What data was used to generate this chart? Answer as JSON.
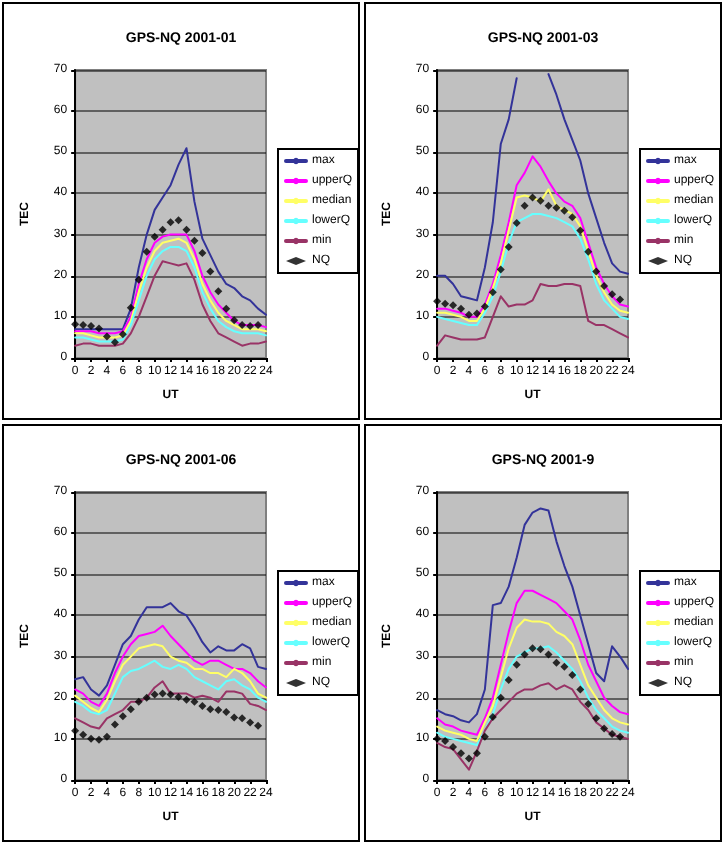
{
  "chart_data": [
    {
      "type": "line",
      "title": "GPS-NQ 2001-01",
      "xlabel": "UT",
      "ylabel": "TEC",
      "x": [
        0,
        1,
        2,
        3,
        4,
        5,
        6,
        7,
        8,
        9,
        10,
        11,
        12,
        13,
        14,
        15,
        16,
        17,
        18,
        19,
        20,
        21,
        22,
        23,
        24
      ],
      "xlim": [
        0,
        24
      ],
      "xticks": [
        0,
        2,
        4,
        6,
        8,
        10,
        12,
        14,
        16,
        18,
        20,
        22,
        24
      ],
      "ylim": [
        0,
        70
      ],
      "yticks": [
        0,
        10,
        20,
        30,
        40,
        50,
        60,
        70
      ],
      "grid": "y",
      "legend": "right",
      "marker": "none",
      "series": [
        {
          "name": "max",
          "color": "#333399",
          "values": [
            7,
            7,
            7,
            7,
            7,
            7,
            7,
            12,
            22,
            30,
            36,
            39,
            42,
            47,
            51,
            38,
            29,
            25,
            21,
            18,
            17,
            15,
            14,
            12,
            10.5
          ]
        },
        {
          "name": "upperQ",
          "color": "#ff00ff",
          "values": [
            6.5,
            6.5,
            6.5,
            6,
            6,
            6,
            6.5,
            10,
            18,
            24,
            28,
            29.5,
            30,
            30,
            30,
            26,
            20,
            16,
            13,
            11,
            9,
            8,
            8,
            8,
            7.5
          ]
        },
        {
          "name": "median",
          "color": "#ffff66",
          "values": [
            6,
            6,
            5.5,
            5,
            5,
            5,
            5.5,
            9,
            16,
            22,
            26,
            28,
            28.5,
            29,
            28,
            24,
            18,
            14,
            11,
            9,
            8,
            7,
            7,
            7,
            6.5
          ]
        },
        {
          "name": "lowerQ",
          "color": "#66ffff",
          "values": [
            5,
            5,
            4.5,
            4,
            4,
            4,
            4.5,
            8,
            14,
            20,
            24,
            26,
            27,
            27,
            26,
            22,
            16,
            12,
            9,
            7.5,
            6.5,
            6,
            6,
            6,
            5.5
          ]
        },
        {
          "name": "min",
          "color": "#993366",
          "values": [
            3,
            3.5,
            3.5,
            3,
            3,
            3,
            3.5,
            6,
            10,
            15,
            20,
            23.5,
            23,
            22.5,
            23,
            19,
            13,
            9,
            6,
            5,
            4,
            3,
            3.5,
            3.5,
            4
          ]
        },
        {
          "name": "NQ",
          "type": "scatter",
          "marker": "diamond",
          "color": "#000000",
          "x": [
            0,
            1,
            2,
            3,
            4,
            5,
            6,
            7,
            8,
            9,
            10,
            11,
            12,
            13,
            14,
            15,
            16,
            17,
            18,
            19,
            20,
            21,
            22,
            23
          ],
          "values": [
            8.2,
            8,
            7.8,
            7.2,
            5.2,
            3.8,
            5.8,
            12.2,
            19,
            25.8,
            29.5,
            31.2,
            33,
            33.5,
            31.2,
            28.5,
            25.5,
            21,
            16.2,
            12,
            9.2,
            8,
            7.8,
            8
          ]
        }
      ]
    },
    {
      "type": "line",
      "title": "GPS-NQ 2001-03",
      "xlabel": "UT",
      "ylabel": "TEC",
      "x": [
        0,
        1,
        2,
        3,
        4,
        5,
        6,
        7,
        8,
        9,
        10,
        11,
        12,
        13,
        14,
        15,
        16,
        17,
        18,
        19,
        20,
        21,
        22,
        23,
        24
      ],
      "xlim": [
        0,
        24
      ],
      "xticks": [
        0,
        2,
        4,
        6,
        8,
        10,
        12,
        14,
        16,
        18,
        20,
        22,
        24
      ],
      "ylim": [
        0,
        70
      ],
      "yticks": [
        0,
        10,
        20,
        30,
        40,
        50,
        60,
        70
      ],
      "grid": "y",
      "legend": "right",
      "marker": "none",
      "series": [
        {
          "name": "max",
          "color": "#333399",
          "values": [
            20,
            20,
            18,
            15,
            14.5,
            14,
            22,
            33,
            52,
            58,
            68,
            null,
            null,
            null,
            69,
            64,
            58,
            53,
            48,
            40,
            34,
            28,
            23,
            21,
            20.5
          ]
        },
        {
          "name": "upperQ",
          "color": "#ff00ff",
          "values": [
            12,
            12,
            11.5,
            11,
            10,
            10,
            13,
            18,
            25,
            33,
            42,
            45,
            49,
            46.5,
            43,
            40,
            38,
            37,
            34,
            28,
            22,
            18,
            15,
            13,
            12.5
          ]
        },
        {
          "name": "median",
          "color": "#ffff66",
          "values": [
            11,
            11,
            10.5,
            10,
            9,
            9,
            12,
            17,
            23,
            31,
            39,
            39.5,
            39,
            38,
            41,
            37,
            36,
            35,
            32,
            26,
            20,
            16,
            13,
            11.5,
            11
          ]
        },
        {
          "name": "lowerQ",
          "color": "#66ffff",
          "values": [
            10,
            9.5,
            9,
            8.5,
            8,
            8,
            11,
            15,
            21,
            28,
            33,
            34,
            35,
            35,
            34.5,
            34,
            33,
            32,
            29,
            24,
            18,
            14,
            12,
            10,
            9.5
          ]
        },
        {
          "name": "min",
          "color": "#993366",
          "values": [
            3,
            5.5,
            5,
            4.5,
            4.5,
            4.5,
            5,
            10,
            15,
            12.5,
            13,
            13,
            14,
            18,
            17.5,
            17.5,
            18,
            18,
            17.5,
            9,
            8,
            8,
            7,
            6,
            5
          ]
        },
        {
          "name": "NQ",
          "type": "scatter",
          "marker": "diamond",
          "color": "#000000",
          "x": [
            0,
            1,
            2,
            3,
            4,
            5,
            6,
            7,
            8,
            9,
            10,
            11,
            12,
            13,
            14,
            15,
            16,
            17,
            18,
            19,
            20,
            21,
            22,
            23
          ],
          "values": [
            13.8,
            13.2,
            12.8,
            12,
            10.5,
            10.8,
            12.5,
            16,
            21.5,
            27,
            32.8,
            37,
            39,
            38.2,
            37,
            36.5,
            35.8,
            34.2,
            31,
            25.8,
            21,
            17.5,
            15.5,
            14.2
          ]
        }
      ]
    },
    {
      "type": "line",
      "title": "GPS-NQ 2001-06",
      "xlabel": "UT",
      "ylabel": "TEC",
      "x": [
        0,
        1,
        2,
        3,
        4,
        5,
        6,
        7,
        8,
        9,
        10,
        11,
        12,
        13,
        14,
        15,
        16,
        17,
        18,
        19,
        20,
        21,
        22,
        23,
        24
      ],
      "xlim": [
        0,
        24
      ],
      "xticks": [
        0,
        2,
        4,
        6,
        8,
        10,
        12,
        14,
        16,
        18,
        20,
        22,
        24
      ],
      "ylim": [
        0,
        70
      ],
      "yticks": [
        0,
        10,
        20,
        30,
        40,
        50,
        60,
        70
      ],
      "grid": "y",
      "legend": "right",
      "marker": "none",
      "series": [
        {
          "name": "max",
          "color": "#333399",
          "values": [
            24.5,
            25,
            22,
            20.5,
            23,
            28,
            33,
            35,
            39,
            42,
            42,
            42,
            43,
            41,
            40,
            37,
            33.5,
            31,
            32.5,
            31.5,
            31.5,
            33,
            32,
            27.5,
            27
          ]
        },
        {
          "name": "upperQ",
          "color": "#ff00ff",
          "values": [
            22,
            21,
            19,
            18,
            21,
            26,
            30,
            33,
            35,
            35.5,
            36,
            37.5,
            35,
            33,
            31,
            29,
            28,
            29,
            29,
            28,
            27,
            27,
            26,
            24,
            22.5
          ]
        },
        {
          "name": "median",
          "color": "#ffff66",
          "values": [
            20.5,
            19,
            17.5,
            16.5,
            19.5,
            24,
            28,
            30,
            32,
            32.5,
            33,
            32.5,
            30,
            29,
            28.5,
            27,
            27,
            26,
            26,
            25,
            27,
            26,
            24,
            21,
            20
          ]
        },
        {
          "name": "lowerQ",
          "color": "#66ffff",
          "values": [
            19,
            18,
            16.5,
            16,
            17,
            21,
            25,
            26.5,
            27,
            28,
            29,
            27.5,
            27,
            28,
            27,
            25,
            24,
            23,
            22,
            24,
            24.5,
            23,
            22,
            20,
            19
          ]
        },
        {
          "name": "min",
          "color": "#993366",
          "values": [
            15,
            14,
            13,
            12.5,
            15,
            16,
            17,
            19,
            19,
            20,
            22.5,
            24,
            21,
            21,
            21,
            20,
            20.5,
            20,
            19,
            21.5,
            21.5,
            21,
            18.5,
            18,
            17
          ]
        },
        {
          "name": "NQ",
          "type": "scatter",
          "marker": "diamond",
          "color": "#000000",
          "x": [
            0,
            1,
            2,
            3,
            4,
            5,
            6,
            7,
            8,
            9,
            10,
            11,
            12,
            13,
            14,
            15,
            16,
            17,
            18,
            19,
            20,
            21,
            22,
            23
          ],
          "values": [
            12,
            11,
            10,
            9.8,
            10.5,
            13.5,
            15.5,
            17.2,
            19,
            20,
            20.8,
            21,
            20.8,
            20.2,
            19.5,
            19,
            18,
            17.2,
            17,
            16.5,
            15.2,
            15,
            14,
            13.2
          ]
        }
      ]
    },
    {
      "type": "line",
      "title": "GPS-NQ 2001-9",
      "xlabel": "UT",
      "ylabel": "TEC",
      "x": [
        0,
        1,
        2,
        3,
        4,
        5,
        6,
        7,
        8,
        9,
        10,
        11,
        12,
        13,
        14,
        15,
        16,
        17,
        18,
        19,
        20,
        21,
        22,
        23,
        24
      ],
      "xlim": [
        0,
        24
      ],
      "xticks": [
        0,
        2,
        4,
        6,
        8,
        10,
        12,
        14,
        16,
        18,
        20,
        22,
        24
      ],
      "ylim": [
        0,
        70
      ],
      "yticks": [
        0,
        10,
        20,
        30,
        40,
        50,
        60,
        70
      ],
      "grid": "y",
      "legend": "right",
      "marker": "none",
      "series": [
        {
          "name": "max",
          "color": "#333399",
          "values": [
            17,
            16,
            15.5,
            14.5,
            14,
            16,
            22,
            42.5,
            43,
            47,
            54,
            62,
            65,
            66,
            65.5,
            58,
            52,
            47,
            40,
            33,
            26,
            24,
            32.5,
            30,
            27
          ]
        },
        {
          "name": "upperQ",
          "color": "#ff00ff",
          "values": [
            15,
            13.5,
            13,
            12,
            11.5,
            11,
            15,
            20,
            28,
            36,
            43,
            46,
            46,
            45,
            44,
            43,
            41,
            39,
            34,
            28,
            24,
            20,
            18,
            16.5,
            16
          ]
        },
        {
          "name": "median",
          "color": "#ffff66",
          "values": [
            13,
            12,
            11.5,
            11,
            10,
            9.5,
            14,
            18,
            25,
            32,
            37,
            39,
            38.5,
            38.5,
            38,
            36,
            35,
            33,
            28,
            23,
            20,
            17,
            15,
            14,
            13.5
          ]
        },
        {
          "name": "lowerQ",
          "color": "#66ffff",
          "values": [
            11.5,
            10.5,
            10,
            9.5,
            9,
            8.5,
            12,
            16,
            22,
            27,
            30,
            31,
            32,
            32,
            32.5,
            31,
            29,
            27,
            24,
            20,
            17,
            15,
            13,
            12,
            11.5
          ]
        },
        {
          "name": "min",
          "color": "#993366",
          "values": [
            9,
            8,
            7.5,
            5,
            2.5,
            7,
            12,
            15,
            17,
            19,
            21,
            22,
            22,
            23,
            23.5,
            22,
            23,
            22,
            19,
            17,
            14,
            12.5,
            11,
            10.5,
            10
          ]
        },
        {
          "name": "NQ",
          "type": "scatter",
          "marker": "diamond",
          "color": "#000000",
          "x": [
            0,
            1,
            2,
            3,
            4,
            5,
            6,
            7,
            8,
            9,
            10,
            11,
            12,
            13,
            14,
            15,
            16,
            17,
            18,
            19,
            20,
            21,
            22,
            23
          ],
          "values": [
            10,
            9.5,
            8,
            6.5,
            5.2,
            6.5,
            10.5,
            15.3,
            20,
            24.3,
            28,
            30.5,
            32,
            31.8,
            30.5,
            28.5,
            27.5,
            25.5,
            22,
            18.5,
            15,
            12.5,
            11.2,
            10.5
          ]
        }
      ]
    }
  ]
}
